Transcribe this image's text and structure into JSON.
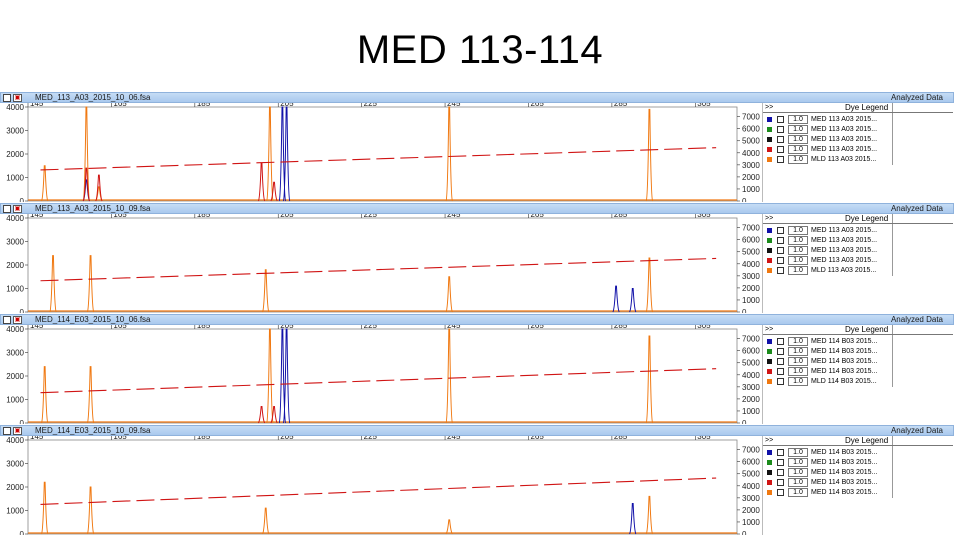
{
  "slide_title": "MED 113-114",
  "legend_header": "Dye Legend",
  "legend_arrows": ">>",
  "analyzed_label": "Analyzed Data",
  "colors": {
    "blue": "#1010a8",
    "green": "#1a8a1a",
    "black": "#111111",
    "red": "#d01414",
    "orange": "#f07810"
  },
  "panels": [
    {
      "file": "MED_113_A03_2015_10_06.fsa",
      "legend_rows": [
        {
          "color": "blue",
          "scale": "1.0",
          "sample": "MED 113 A03 2015..."
        },
        {
          "color": "green",
          "scale": "1.0",
          "sample": "MED 113 A03 2015..."
        },
        {
          "color": "black",
          "scale": "1.0",
          "sample": "MED 113 A03 2015..."
        },
        {
          "color": "red",
          "scale": "1.0",
          "sample": "MED 113 A03 2015..."
        },
        {
          "color": "orange",
          "scale": "1.0",
          "sample": "MLD 113 A03 2015..."
        }
      ]
    },
    {
      "file": "MED_113_A03_2015_10_09.fsa",
      "legend_rows": [
        {
          "color": "blue",
          "scale": "1.0",
          "sample": "MED 113 A03 2015..."
        },
        {
          "color": "green",
          "scale": "1.0",
          "sample": "MED 113 A03 2015..."
        },
        {
          "color": "black",
          "scale": "1.0",
          "sample": "MED 113 A03 2015..."
        },
        {
          "color": "red",
          "scale": "1.0",
          "sample": "MED 113 A03 2015..."
        },
        {
          "color": "orange",
          "scale": "1.0",
          "sample": "MLD 113 A03 2015..."
        }
      ]
    },
    {
      "file": "MED_114_E03_2015_10_06.fsa",
      "legend_rows": [
        {
          "color": "blue",
          "scale": "1.0",
          "sample": "MED 114 B03 2015..."
        },
        {
          "color": "green",
          "scale": "1.0",
          "sample": "MED 114 B03 2015..."
        },
        {
          "color": "black",
          "scale": "1.0",
          "sample": "MED 114 B03 2015..."
        },
        {
          "color": "red",
          "scale": "1.0",
          "sample": "MED 114 B03 2015..."
        },
        {
          "color": "orange",
          "scale": "1.0",
          "sample": "MLD 114 B03 2015..."
        }
      ]
    },
    {
      "file": "MED_114_E03_2015_10_09.fsa",
      "legend_rows": [
        {
          "color": "blue",
          "scale": "1.0",
          "sample": "MED 114 B03 2015..."
        },
        {
          "color": "green",
          "scale": "1.0",
          "sample": "MED 114 B03 2015..."
        },
        {
          "color": "black",
          "scale": "1.0",
          "sample": "MED 114 B03 2015..."
        },
        {
          "color": "red",
          "scale": "1.0",
          "sample": "MED 114 B03 2015..."
        },
        {
          "color": "orange",
          "scale": "1.0",
          "sample": "MED 114 B03 2015..."
        }
      ]
    }
  ],
  "chart_data": [
    {
      "type": "line",
      "title": "MED_113_A03_2015_10_06.fsa",
      "xlim": [
        145,
        315
      ],
      "x_ticks": [
        145,
        165,
        185,
        205,
        225,
        245,
        265,
        285,
        305
      ],
      "y_left_ticks": [
        0,
        1000,
        2000,
        3000,
        4000
      ],
      "y_left_lim": [
        0,
        4000
      ],
      "y_right_ticks": [
        0,
        1000,
        2000,
        3000,
        4000,
        5000,
        6000,
        7000
      ],
      "y_right_lim": [
        0,
        7800
      ],
      "series": [
        {
          "color": "orange",
          "peaks": [
            [
              149,
              1500
            ],
            [
              159,
              4000
            ],
            [
              162,
              600
            ],
            [
              203,
              4000
            ],
            [
              246,
              4000
            ],
            [
              294,
              3900
            ]
          ]
        },
        {
          "color": "blue",
          "peaks": [
            [
              206,
              4000
            ],
            [
              207,
              4000
            ],
            [
              159,
              900
            ]
          ]
        },
        {
          "color": "red",
          "peaks": [
            [
              159,
              1400
            ],
            [
              162,
              1100
            ],
            [
              201,
              1600
            ],
            [
              204,
              800
            ]
          ]
        }
      ],
      "sizing_line": {
        "color": "red",
        "points": [
          [
            148,
            1320
          ],
          [
            310,
            2270
          ]
        ]
      }
    },
    {
      "type": "line",
      "title": "MED_113_A03_2015_10_09.fsa",
      "xlim": [
        145,
        315
      ],
      "x_ticks": [
        145,
        165,
        185,
        205,
        225,
        245,
        265,
        285,
        305
      ],
      "y_left_ticks": [
        0,
        1000,
        2000,
        3000,
        4000
      ],
      "y_left_lim": [
        0,
        4000
      ],
      "y_right_ticks": [
        0,
        1000,
        2000,
        3000,
        4000,
        5000,
        6000,
        7000
      ],
      "y_right_lim": [
        0,
        7800
      ],
      "series": [
        {
          "color": "orange",
          "peaks": [
            [
              151,
              2400
            ],
            [
              160,
              2400
            ],
            [
              202,
              1800
            ],
            [
              246,
              1500
            ],
            [
              294,
              2300
            ]
          ]
        },
        {
          "color": "blue",
          "peaks": [
            [
              286,
              1100
            ],
            [
              290,
              1000
            ]
          ]
        }
      ],
      "sizing_line": {
        "color": "red",
        "points": [
          [
            148,
            1330
          ],
          [
            310,
            2280
          ]
        ]
      }
    },
    {
      "type": "line",
      "title": "MED_114_E03_2015_10_06.fsa",
      "xlim": [
        145,
        315
      ],
      "x_ticks": [
        145,
        165,
        185,
        205,
        225,
        245,
        265,
        285,
        305
      ],
      "y_left_ticks": [
        0,
        1000,
        2000,
        3000,
        4000
      ],
      "y_left_lim": [
        0,
        4000
      ],
      "y_right_ticks": [
        0,
        1000,
        2000,
        3000,
        4000,
        5000,
        6000,
        7000
      ],
      "y_right_lim": [
        0,
        7800
      ],
      "series": [
        {
          "color": "orange",
          "peaks": [
            [
              149,
              2400
            ],
            [
              160,
              2400
            ],
            [
              203,
              4000
            ],
            [
              246,
              4000
            ],
            [
              294,
              3700
            ]
          ]
        },
        {
          "color": "blue",
          "peaks": [
            [
              206,
              4000
            ],
            [
              207,
              4000
            ]
          ]
        },
        {
          "color": "red",
          "peaks": [
            [
              201,
              700
            ],
            [
              204,
              700
            ]
          ]
        }
      ],
      "sizing_line": {
        "color": "red",
        "points": [
          [
            148,
            1290
          ],
          [
            310,
            2310
          ]
        ]
      }
    },
    {
      "type": "line",
      "title": "MED_114_E03_2015_10_09.fsa",
      "xlim": [
        145,
        315
      ],
      "x_ticks": [
        145,
        165,
        185,
        205,
        225,
        245,
        265,
        285,
        305
      ],
      "y_left_ticks": [
        0,
        1000,
        2000,
        3000,
        4000
      ],
      "y_left_lim": [
        0,
        4000
      ],
      "y_right_ticks": [
        0,
        1000,
        2000,
        3000,
        4000,
        5000,
        6000,
        7000
      ],
      "y_right_lim": [
        0,
        7800
      ],
      "series": [
        {
          "color": "orange",
          "peaks": [
            [
              149,
              2200
            ],
            [
              160,
              2000
            ],
            [
              202,
              1100
            ],
            [
              246,
              600
            ],
            [
              294,
              1600
            ]
          ]
        },
        {
          "color": "blue",
          "peaks": [
            [
              290,
              1300
            ]
          ]
        }
      ],
      "sizing_line": {
        "color": "red",
        "points": [
          [
            148,
            1260
          ],
          [
            310,
            2380
          ]
        ]
      }
    }
  ]
}
